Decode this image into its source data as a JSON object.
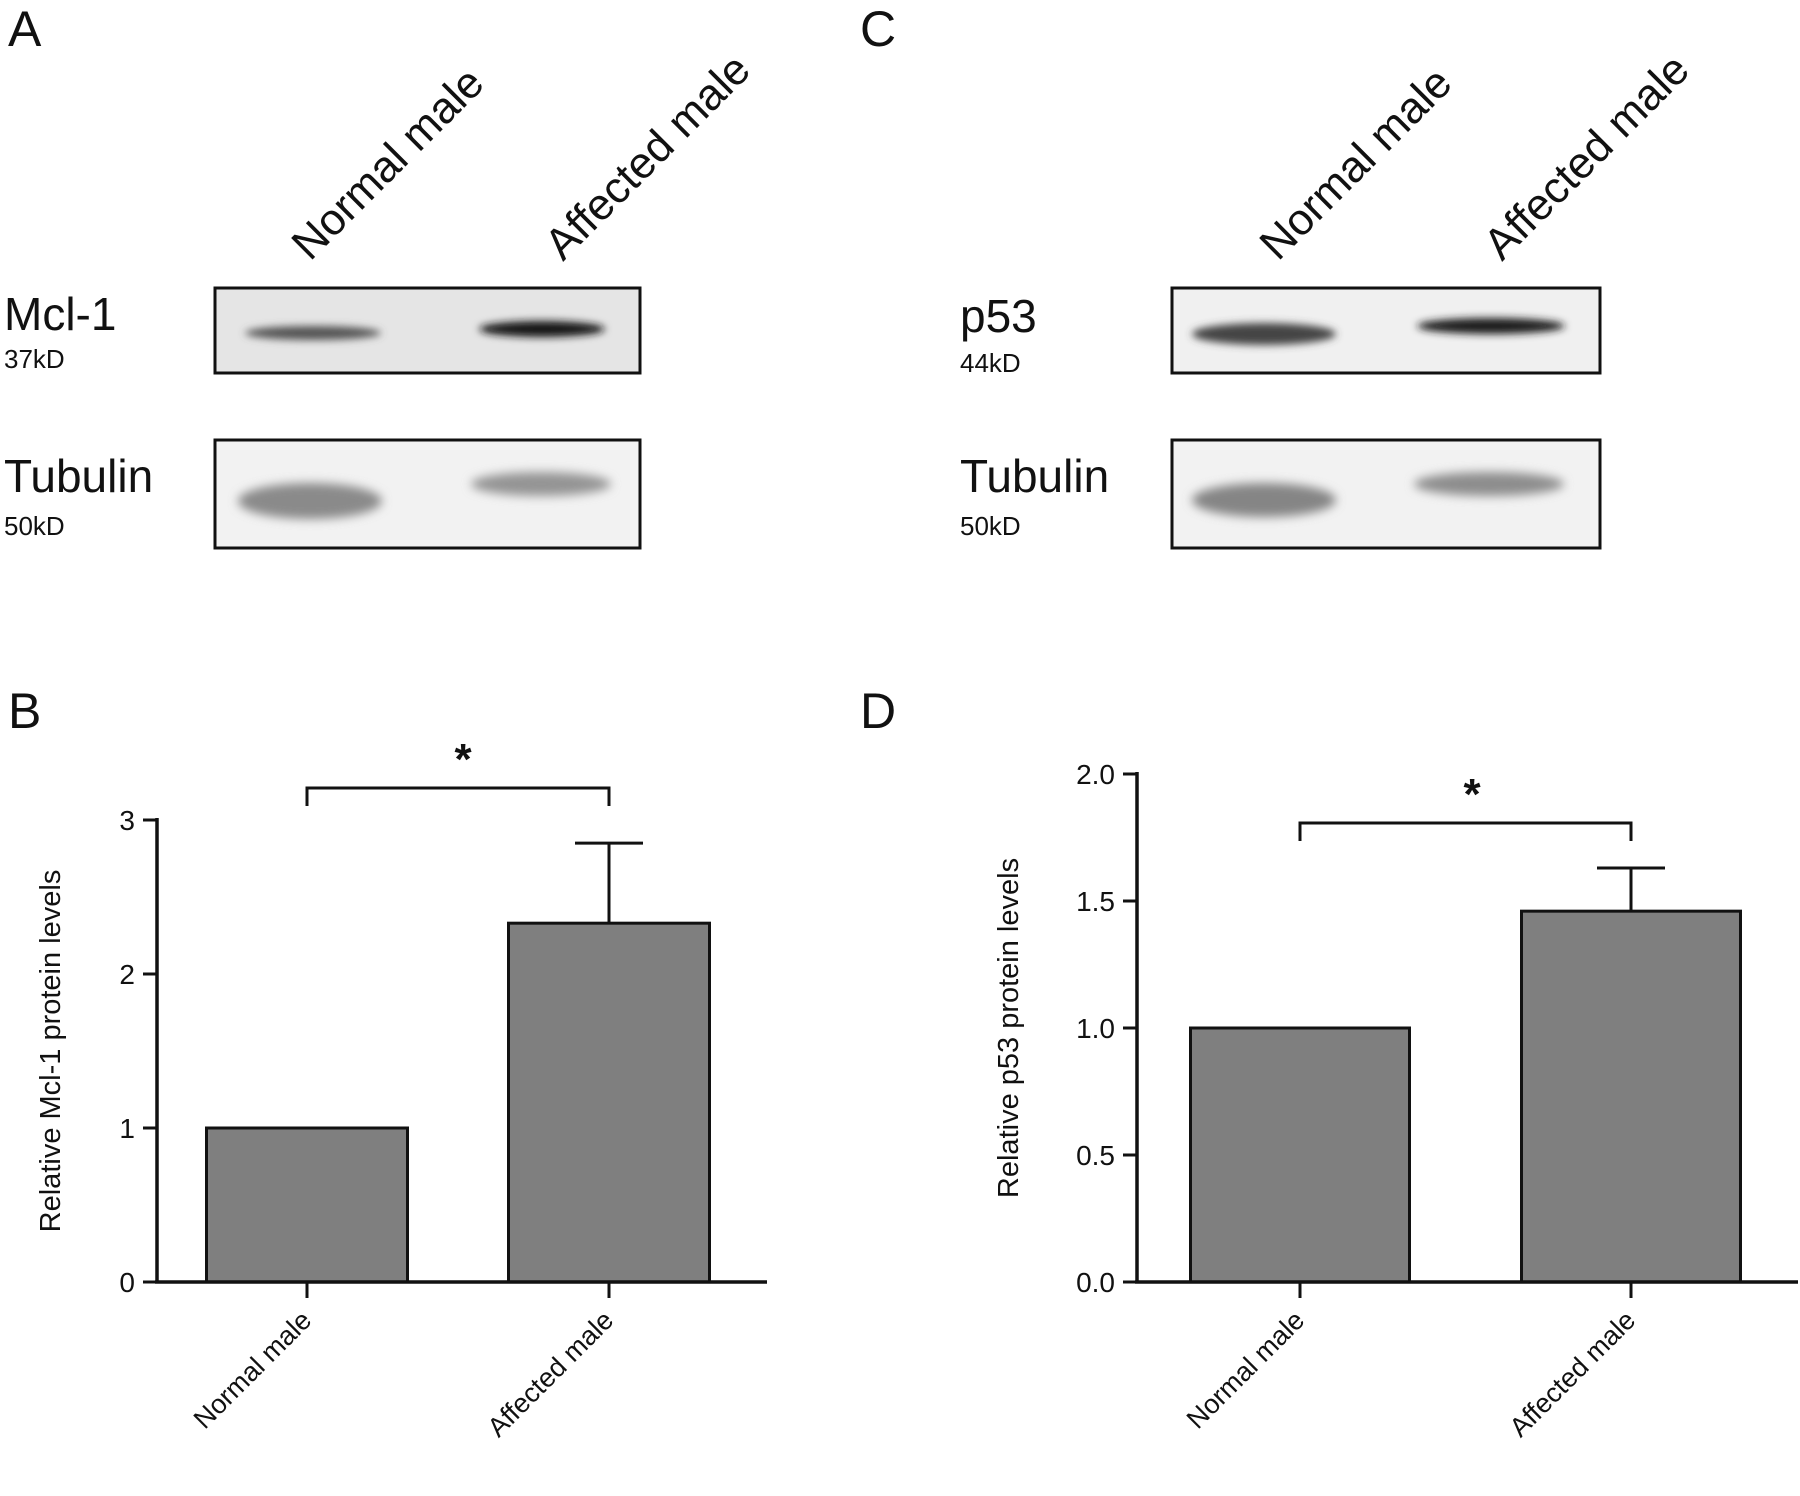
{
  "panels": [
    {
      "id": "A",
      "letter": "A"
    },
    {
      "id": "B",
      "letter": "B"
    },
    {
      "id": "C",
      "letter": "C"
    },
    {
      "id": "D",
      "letter": "D"
    }
  ],
  "blots": [
    {
      "panel": "A",
      "lanes": [
        "Normal male",
        "Affected male"
      ],
      "rows": [
        {
          "protein": "Mcl-1",
          "size": "37kD"
        },
        {
          "protein": "Tubulin",
          "size": "50kD"
        }
      ]
    },
    {
      "panel": "C",
      "lanes": [
        "Normal male",
        "Affected male"
      ],
      "rows": [
        {
          "protein": "p53",
          "size": "44kD"
        },
        {
          "protein": "Tubulin",
          "size": "50kD"
        }
      ]
    }
  ],
  "chart_data": [
    {
      "panel": "B",
      "type": "bar",
      "categories": [
        "Normal male",
        "Affected male"
      ],
      "values": [
        1.0,
        2.33
      ],
      "error": [
        0,
        0.52
      ],
      "ylabel": "Relative Mcl-1 protein levels",
      "ylim": [
        0,
        3
      ],
      "yticks": [
        "0",
        "1",
        "2",
        "3"
      ],
      "significance": "*",
      "bar_color": "#7f7f7f"
    },
    {
      "panel": "D",
      "type": "bar",
      "categories": [
        "Normal male",
        "Affected male"
      ],
      "values": [
        1.0,
        1.46
      ],
      "error": [
        0,
        0.17
      ],
      "ylabel": "Relative p53 protein levels",
      "ylim": [
        0,
        2.0
      ],
      "yticks": [
        "0.0",
        "0.5",
        "1.0",
        "1.5",
        "2.0"
      ],
      "significance": "*",
      "bar_color": "#7f7f7f"
    }
  ]
}
